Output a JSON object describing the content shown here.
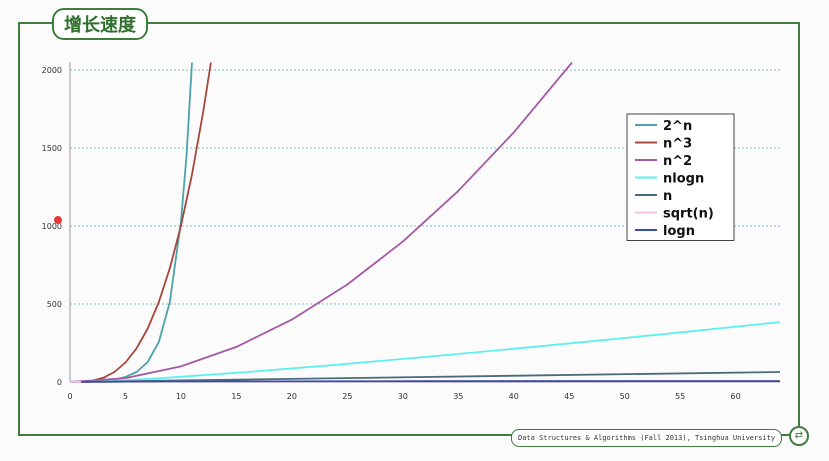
{
  "slide": {
    "title": "增长速度",
    "footer": "Data Structures & Algorithms (Fall 2013), Tsinghua University"
  },
  "chart_data": {
    "type": "line",
    "xlim": [
      0,
      64
    ],
    "ylim": [
      0,
      2000
    ],
    "x_ticks": [
      0,
      5,
      10,
      15,
      20,
      25,
      30,
      35,
      40,
      45,
      50,
      55,
      60
    ],
    "y_ticks": [
      0,
      500,
      1000,
      1500,
      2000
    ],
    "grid": true,
    "legend_position": "top-right",
    "series": [
      {
        "name": "2^n",
        "color": "#4aa3a8",
        "x": [
          0,
          1,
          2,
          3,
          4,
          5,
          6,
          7,
          8,
          9,
          10,
          10.5,
          11
        ],
        "y": [
          1,
          2,
          4,
          8,
          16,
          32,
          64,
          128,
          256,
          512,
          1024,
          1448,
          2048
        ]
      },
      {
        "name": "n^3",
        "color": "#a5463c",
        "x": [
          0,
          1,
          2,
          3,
          4,
          5,
          6,
          7,
          8,
          9,
          10,
          11,
          12,
          12.7
        ],
        "y": [
          0,
          1,
          8,
          27,
          64,
          125,
          216,
          343,
          512,
          729,
          1000,
          1331,
          1728,
          2048
        ]
      },
      {
        "name": "n^2",
        "color": "#a55aa5",
        "x": [
          0,
          5,
          10,
          15,
          20,
          25,
          30,
          35,
          40,
          45.25
        ],
        "y": [
          0,
          25,
          100,
          225,
          400,
          625,
          900,
          1225,
          1600,
          2048
        ]
      },
      {
        "name": "nlogn",
        "color": "#5ef0f0",
        "x": [
          1,
          2,
          4,
          8,
          16,
          24,
          32,
          40,
          48,
          56,
          64
        ],
        "y": [
          0,
          2,
          8,
          24,
          64,
          110,
          160,
          213,
          268,
          325,
          384
        ]
      },
      {
        "name": "n",
        "color": "#4a6a7a",
        "x": [
          0,
          64
        ],
        "y": [
          0,
          64
        ]
      },
      {
        "name": "sqrt(n)",
        "color": "#f4c6e2",
        "x": [
          0,
          4,
          16,
          36,
          64
        ],
        "y": [
          0,
          2,
          4,
          6,
          8
        ]
      },
      {
        "name": "logn",
        "color": "#3a4aa8",
        "x": [
          1,
          2,
          4,
          8,
          16,
          32,
          64
        ],
        "y": [
          0,
          1,
          2,
          3,
          4,
          5,
          6
        ]
      }
    ]
  }
}
